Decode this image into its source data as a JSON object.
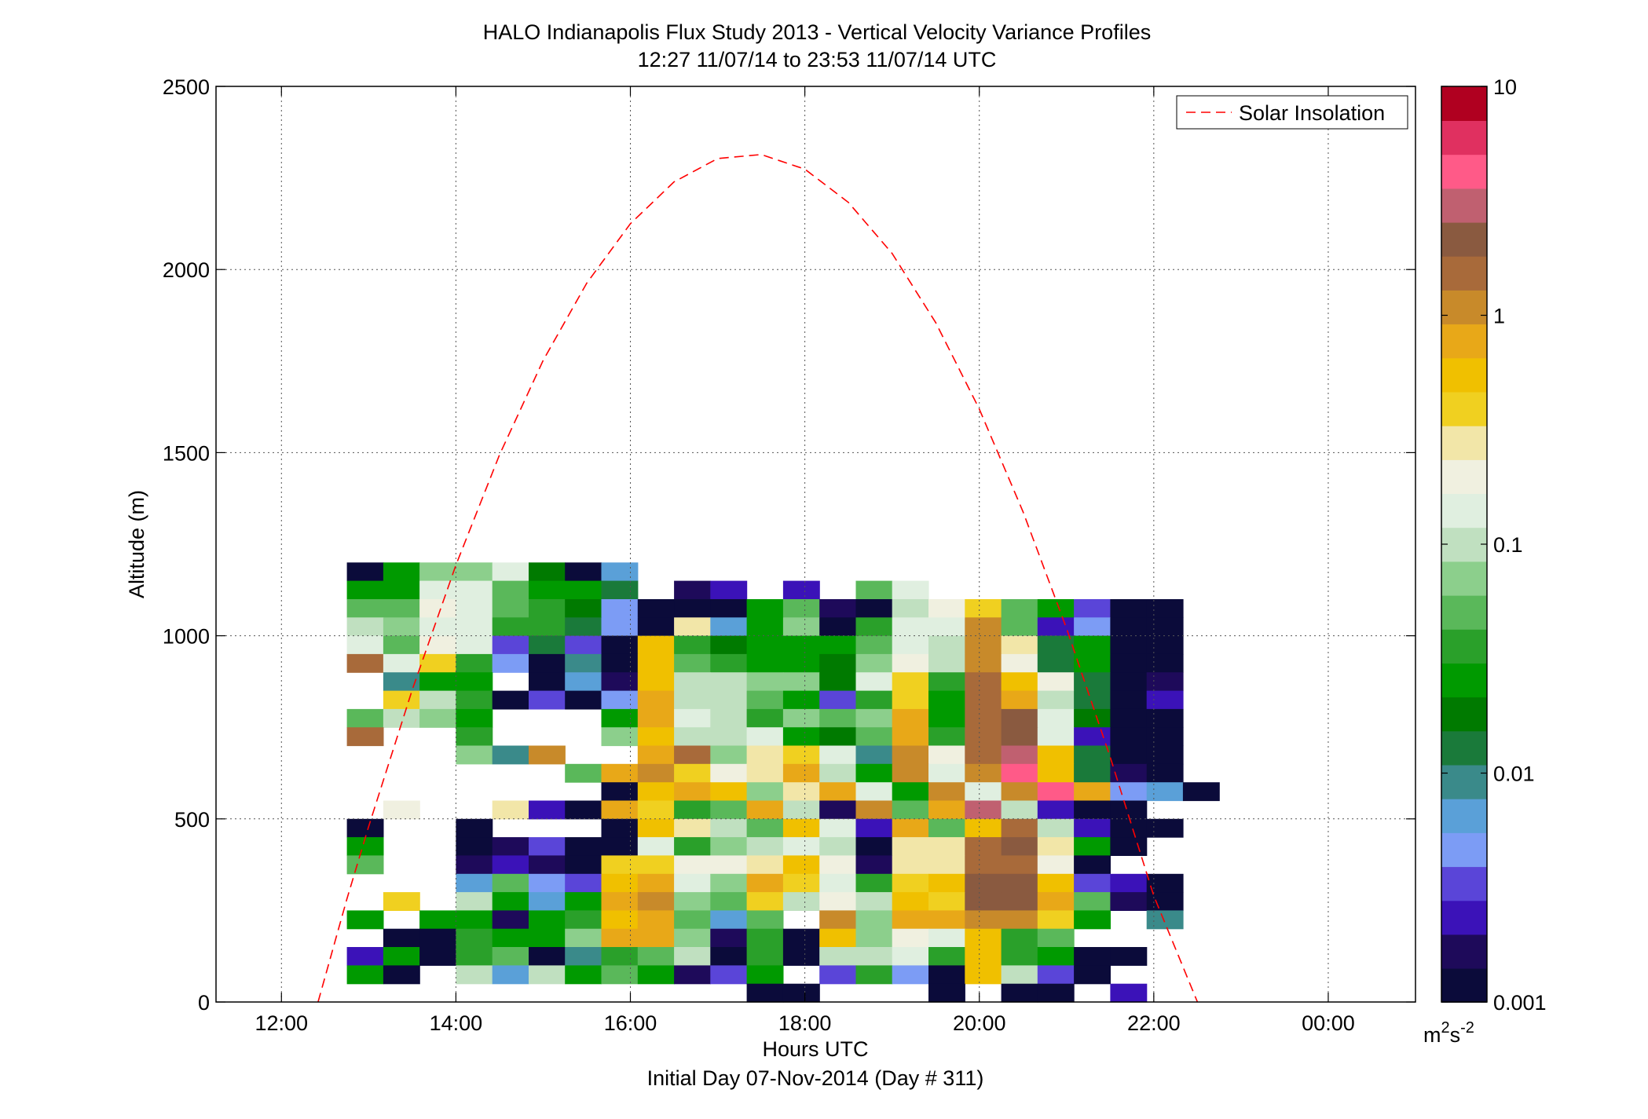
{
  "chart_data": {
    "type": "heatmap",
    "title": "HALO Indianapolis Flux Study 2013 - Vertical Velocity Variance Profiles",
    "subtitle": "12:27 11/07/14 to 23:53 11/07/14  UTC",
    "xlabel": "Hours UTC",
    "xlabel2": "Initial Day 07-Nov-2014 (Day # 311)",
    "ylabel": "Altitude (m)",
    "xlim": [
      11.25,
      25.0
    ],
    "ylim": [
      0,
      2500
    ],
    "x_ticks": [
      {
        "value": 12,
        "label": "12:00"
      },
      {
        "value": 14,
        "label": "14:00"
      },
      {
        "value": 16,
        "label": "16:00"
      },
      {
        "value": 18,
        "label": "18:00"
      },
      {
        "value": 20,
        "label": "20:00"
      },
      {
        "value": 22,
        "label": "22:00"
      },
      {
        "value": 24,
        "label": "00:00"
      }
    ],
    "y_ticks": [
      {
        "value": 0,
        "label": "0"
      },
      {
        "value": 500,
        "label": "500"
      },
      {
        "value": 1000,
        "label": "1000"
      },
      {
        "value": 1500,
        "label": "1500"
      },
      {
        "value": 2000,
        "label": "2000"
      },
      {
        "value": 2500,
        "label": "2500"
      }
    ],
    "grid": true,
    "colorbar": {
      "scale": "log",
      "range": [
        0.001,
        10
      ],
      "ticks": [
        {
          "value": 0.001,
          "label": "0.001"
        },
        {
          "value": 0.01,
          "label": "0.01"
        },
        {
          "value": 0.1,
          "label": "0.1"
        },
        {
          "value": 1,
          "label": "1"
        },
        {
          "value": 10,
          "label": "10"
        }
      ],
      "units": "m2s-2"
    },
    "colormap": [
      "#0b0b3a",
      "#1e0a5a",
      "#3b12b8",
      "#5a45d8",
      "#7c9cf5",
      "#5aa0d8",
      "#3a8a8a",
      "#1a7a3a",
      "#007a00",
      "#009a00",
      "#2aa02a",
      "#5ab85a",
      "#8ccf8c",
      "#c0e0c0",
      "#e0efe0",
      "#f0f0e0",
      "#f2e6a8",
      "#f0d020",
      "#f0c000",
      "#e8a818",
      "#c88a2a",
      "#a86a3a",
      "#8a5a40",
      "#c06070",
      "#ff5a88",
      "#e03060",
      "#b00020"
    ],
    "cells": {
      "x_start": 12.75,
      "x_step": 0.4167,
      "y_step": 50,
      "levels_top": 1200,
      "rows": [
        "0 9 12 12 14 8 0 5 . . . . . . . . . . . . . . .",
        "9 9 14 14 11 9 9 7 . 1 2 . 2 . 11 14 . . . . . . .",
        "11 11 15 14 11 10 8 4 0 0 0 9 11 1 0 13 15 17 11 9 3 0 0",
        "13 12 14 14 10 10 7 4 0 16 5 9 12 0 10 14 14 20 11 2 4 0 0",
        "14 11 15 14 3 7 3 0 18 10 8 9 9 9 11 14 13 20 16 7 9 0 0",
        "21 14 17 10 4 0 6 0 18 11 10 9 9 8 12 15 13 20 15 7 9 0 0",
        ". 6 9 9 . 0 5 1 18 13 13 12 12 8 14 17 10 21 18 15 7 0 1",
        ". 17 13 10 0 3 0 4 19 13 13 11 9 3 10 17 9 21 19 13 7 0 2",
        "11 13 12 9 . . . 9 19 14 13 10 12 11 12 19 9 21 22 14 8 0 0",
        "21 . . 10 . . . 12 18 13 13 14 9 8 11 19 10 21 22 14 2 0 0",
        ". . . 12 6 20 . . 19 21 12 16 17 14 6 20 15 21 23 18 7 0 0",
        ". . . . . . 11 19 20 17 15 16 19 13 9 20 14 20 24 18 7 1 0",
        ". . . . . . . 0 18 19 18 12 16 19 14 9 20 14 20 24 19 4 5 0",
        ". 15 . . 16 2 0 19 17 10 11 19 13 1 20 11 19 23 13 2 0 0",
        "0 . . 0 . . . 0 18 16 13 11 18 14 2 19 11 18 21 13 2 0 0",
        "9 . . 0 1 3 0 0 14 10 12 13 14 13 0 16 16 21 22 16 9 0 .",
        "11 . . 1 2 1 0 17 17 15 15 16 18 15 1 16 16 21 21 15 0 .",
        ". . . 5 11 4 3 18 19 14 12 19 17 14 10 17 18 22 22 18 3 2 0",
        ". 17 . 13 9 5 9 19 20 12 11 17 13 15 13 18 17 22 22 19 11 1 0",
        "9 . 9 9 1 9 10 18 19 11 5 11 . 20 12 19 19 20 20 17 9 . 6",
        ". 0 0 10 9 9 12 19 19 12 1 10 0 18 12 15 14 18 10 11 . . .",
        "2 9 0 10 11 0 6 10 11 13 0 10 0 13 13 14 10 18 10 9 0 0 .",
        "9 0 . 13 5 13 9 11 9 1 3 9 . 3 10 4 0 18 13 3 0 . .",
        ". . . . . . . . . . . 0 0 . . . 0 . 0 0 . 2 ."
      ]
    },
    "series": [
      {
        "name": "Solar Insolation",
        "color": "#ff0000",
        "style": "dashed",
        "x": [
          12.42,
          12.75,
          13.0,
          13.5,
          14.0,
          14.5,
          15.0,
          15.5,
          16.0,
          16.5,
          17.0,
          17.5,
          18.0,
          18.5,
          19.0,
          19.5,
          20.0,
          20.5,
          21.0,
          21.5,
          22.0,
          22.5
        ],
        "y": [
          0,
          281,
          479,
          853,
          1193,
          1494,
          1752,
          1963,
          2125,
          2239,
          2303,
          2314,
          2274,
          2183,
          2044,
          1855,
          1619,
          1339,
          1020,
          669,
          290,
          0
        ]
      }
    ],
    "legend": {
      "position": "top-right",
      "label": "Solar Insolation"
    }
  }
}
